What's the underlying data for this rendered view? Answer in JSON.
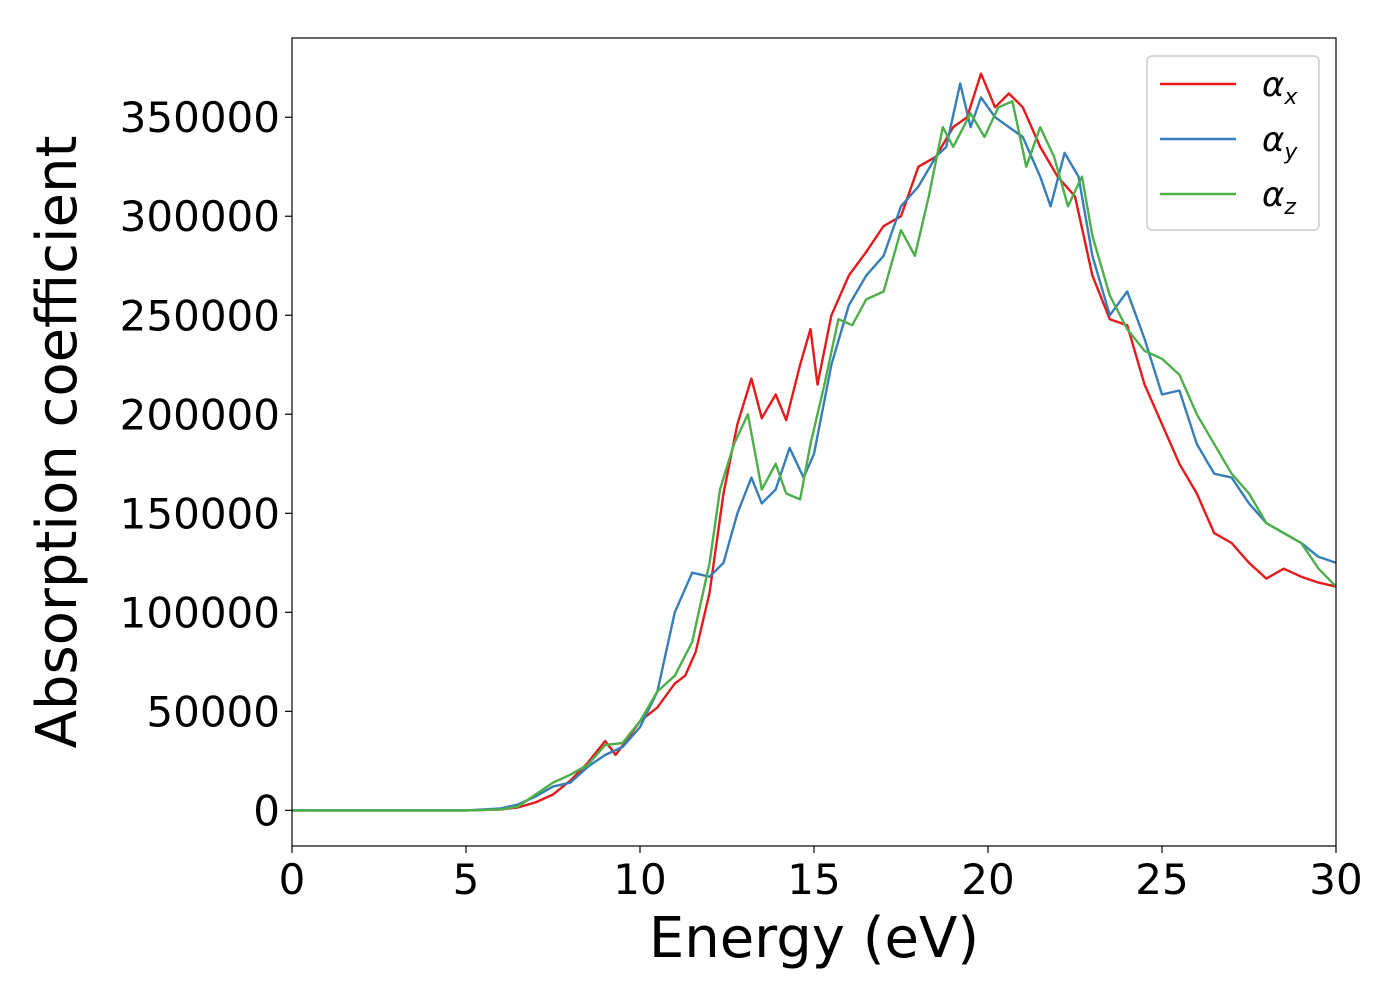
{
  "chart_data": {
    "type": "line",
    "xlabel": "Energy (eV)",
    "ylabel": "Absorption coefficient",
    "xlim": [
      0,
      30
    ],
    "ylim": [
      -18000,
      390000
    ],
    "xticks": [
      0,
      5,
      10,
      15,
      20,
      25,
      30
    ],
    "yticks": [
      0,
      50000,
      100000,
      150000,
      200000,
      250000,
      300000,
      350000
    ],
    "grid": false,
    "legend": "top-right",
    "series": [
      {
        "name": "α",
        "subscript": "x",
        "color": "#e41a1c",
        "points": [
          [
            0,
            0
          ],
          [
            5,
            0
          ],
          [
            6,
            500
          ],
          [
            6.5,
            1500
          ],
          [
            7,
            4000
          ],
          [
            7.5,
            8000
          ],
          [
            8,
            15000
          ],
          [
            8.5,
            24000
          ],
          [
            9,
            35000
          ],
          [
            9.3,
            28000
          ],
          [
            9.6,
            35000
          ],
          [
            10,
            45000
          ],
          [
            10.5,
            52000
          ],
          [
            11,
            64000
          ],
          [
            11.3,
            68000
          ],
          [
            11.6,
            80000
          ],
          [
            12,
            110000
          ],
          [
            12.4,
            160000
          ],
          [
            12.8,
            195000
          ],
          [
            13.2,
            218000
          ],
          [
            13.5,
            198000
          ],
          [
            13.9,
            210000
          ],
          [
            14.2,
            197000
          ],
          [
            14.6,
            225000
          ],
          [
            14.9,
            243000
          ],
          [
            15.1,
            215000
          ],
          [
            15.5,
            250000
          ],
          [
            16,
            270000
          ],
          [
            16.5,
            282000
          ],
          [
            17,
            295000
          ],
          [
            17.5,
            300000
          ],
          [
            18,
            325000
          ],
          [
            18.5,
            330000
          ],
          [
            19,
            345000
          ],
          [
            19.4,
            350000
          ],
          [
            19.8,
            372000
          ],
          [
            20.2,
            355000
          ],
          [
            20.6,
            362000
          ],
          [
            21,
            355000
          ],
          [
            21.5,
            335000
          ],
          [
            22,
            320000
          ],
          [
            22.5,
            310000
          ],
          [
            23,
            270000
          ],
          [
            23.5,
            248000
          ],
          [
            24,
            245000
          ],
          [
            24.5,
            215000
          ],
          [
            25,
            195000
          ],
          [
            25.5,
            175000
          ],
          [
            26,
            160000
          ],
          [
            26.5,
            140000
          ],
          [
            27,
            135000
          ],
          [
            27.5,
            125000
          ],
          [
            28,
            117000
          ],
          [
            28.5,
            122000
          ],
          [
            29,
            118000
          ],
          [
            29.5,
            115000
          ],
          [
            30,
            113000
          ]
        ]
      },
      {
        "name": "α",
        "subscript": "y",
        "color": "#377eb8",
        "points": [
          [
            0,
            0
          ],
          [
            5,
            0
          ],
          [
            6,
            1000
          ],
          [
            6.5,
            3000
          ],
          [
            7,
            7000
          ],
          [
            7.5,
            12000
          ],
          [
            8,
            14000
          ],
          [
            8.5,
            22000
          ],
          [
            9,
            28000
          ],
          [
            9.5,
            32000
          ],
          [
            10,
            42000
          ],
          [
            10.5,
            60000
          ],
          [
            11,
            100000
          ],
          [
            11.5,
            120000
          ],
          [
            12,
            118000
          ],
          [
            12.4,
            125000
          ],
          [
            12.8,
            150000
          ],
          [
            13.2,
            168000
          ],
          [
            13.5,
            155000
          ],
          [
            13.9,
            162000
          ],
          [
            14.3,
            183000
          ],
          [
            14.7,
            168000
          ],
          [
            15,
            180000
          ],
          [
            15.5,
            225000
          ],
          [
            16,
            255000
          ],
          [
            16.5,
            270000
          ],
          [
            17,
            280000
          ],
          [
            17.5,
            305000
          ],
          [
            18,
            315000
          ],
          [
            18.5,
            330000
          ],
          [
            18.8,
            335000
          ],
          [
            19.2,
            367000
          ],
          [
            19.5,
            345000
          ],
          [
            19.8,
            360000
          ],
          [
            20.2,
            350000
          ],
          [
            20.6,
            345000
          ],
          [
            21,
            340000
          ],
          [
            21.5,
            320000
          ],
          [
            21.8,
            305000
          ],
          [
            22.2,
            332000
          ],
          [
            22.6,
            320000
          ],
          [
            23,
            280000
          ],
          [
            23.5,
            250000
          ],
          [
            24,
            262000
          ],
          [
            24.5,
            238000
          ],
          [
            25,
            210000
          ],
          [
            25.5,
            212000
          ],
          [
            26,
            185000
          ],
          [
            26.5,
            170000
          ],
          [
            27,
            168000
          ],
          [
            27.5,
            155000
          ],
          [
            28,
            145000
          ],
          [
            28.5,
            140000
          ],
          [
            29,
            135000
          ],
          [
            29.5,
            128000
          ],
          [
            30,
            125000
          ]
        ]
      },
      {
        "name": "α",
        "subscript": "z",
        "color": "#4daf4a",
        "points": [
          [
            0,
            0
          ],
          [
            5,
            0
          ],
          [
            6,
            500
          ],
          [
            6.5,
            2000
          ],
          [
            7,
            8000
          ],
          [
            7.5,
            14000
          ],
          [
            8,
            18000
          ],
          [
            8.5,
            23000
          ],
          [
            9,
            33000
          ],
          [
            9.5,
            34000
          ],
          [
            10,
            45000
          ],
          [
            10.5,
            60000
          ],
          [
            11,
            68000
          ],
          [
            11.5,
            85000
          ],
          [
            12,
            125000
          ],
          [
            12.3,
            162000
          ],
          [
            12.7,
            185000
          ],
          [
            13.1,
            200000
          ],
          [
            13.5,
            162000
          ],
          [
            13.9,
            175000
          ],
          [
            14.2,
            160000
          ],
          [
            14.6,
            157000
          ],
          [
            14.9,
            185000
          ],
          [
            15.3,
            215000
          ],
          [
            15.7,
            248000
          ],
          [
            16.1,
            245000
          ],
          [
            16.5,
            258000
          ],
          [
            17,
            262000
          ],
          [
            17.5,
            293000
          ],
          [
            17.9,
            280000
          ],
          [
            18.3,
            310000
          ],
          [
            18.7,
            345000
          ],
          [
            19,
            335000
          ],
          [
            19.5,
            352000
          ],
          [
            19.9,
            340000
          ],
          [
            20.3,
            355000
          ],
          [
            20.7,
            358000
          ],
          [
            21.1,
            325000
          ],
          [
            21.5,
            345000
          ],
          [
            21.9,
            330000
          ],
          [
            22.3,
            305000
          ],
          [
            22.7,
            320000
          ],
          [
            23,
            290000
          ],
          [
            23.5,
            260000
          ],
          [
            24,
            243000
          ],
          [
            24.5,
            232000
          ],
          [
            25,
            228000
          ],
          [
            25.5,
            220000
          ],
          [
            26,
            200000
          ],
          [
            26.5,
            185000
          ],
          [
            27,
            170000
          ],
          [
            27.5,
            160000
          ],
          [
            28,
            145000
          ],
          [
            28.5,
            140000
          ],
          [
            29,
            135000
          ],
          [
            29.5,
            122000
          ],
          [
            30,
            113000
          ]
        ]
      }
    ]
  }
}
